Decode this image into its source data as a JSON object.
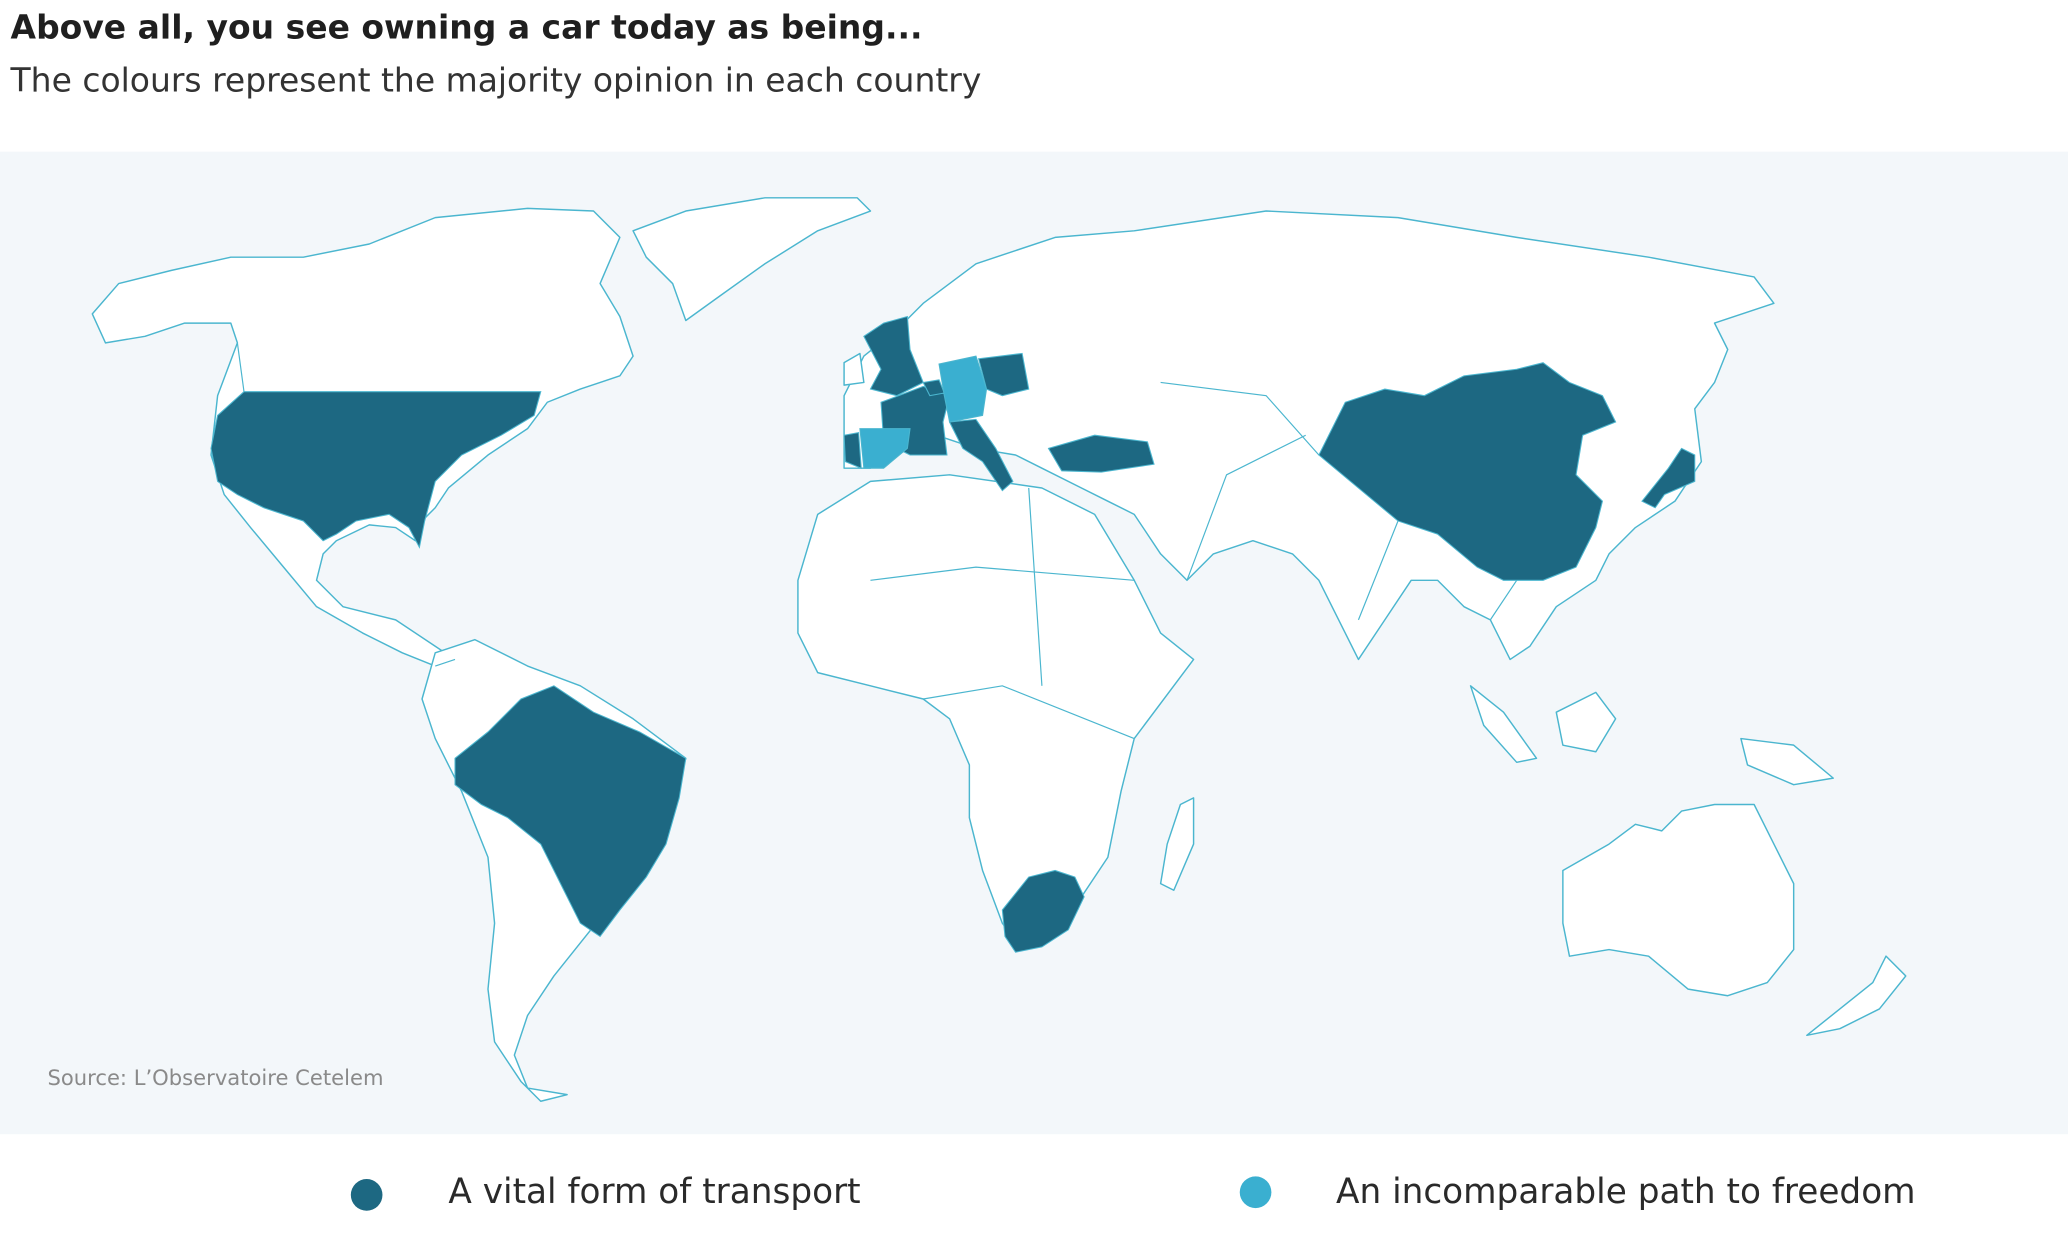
{
  "title": "Above all, you see owning a car today as being...",
  "subtitle": "The colours represent the majority opinion in each country",
  "source": "Source: L’Observatoire Cetelem",
  "legend": [
    {
      "label": "A vital form of transport",
      "color": "#1d6882"
    },
    {
      "label": "An incomparable path to freedom",
      "color": "#3aafd0"
    }
  ]
}
